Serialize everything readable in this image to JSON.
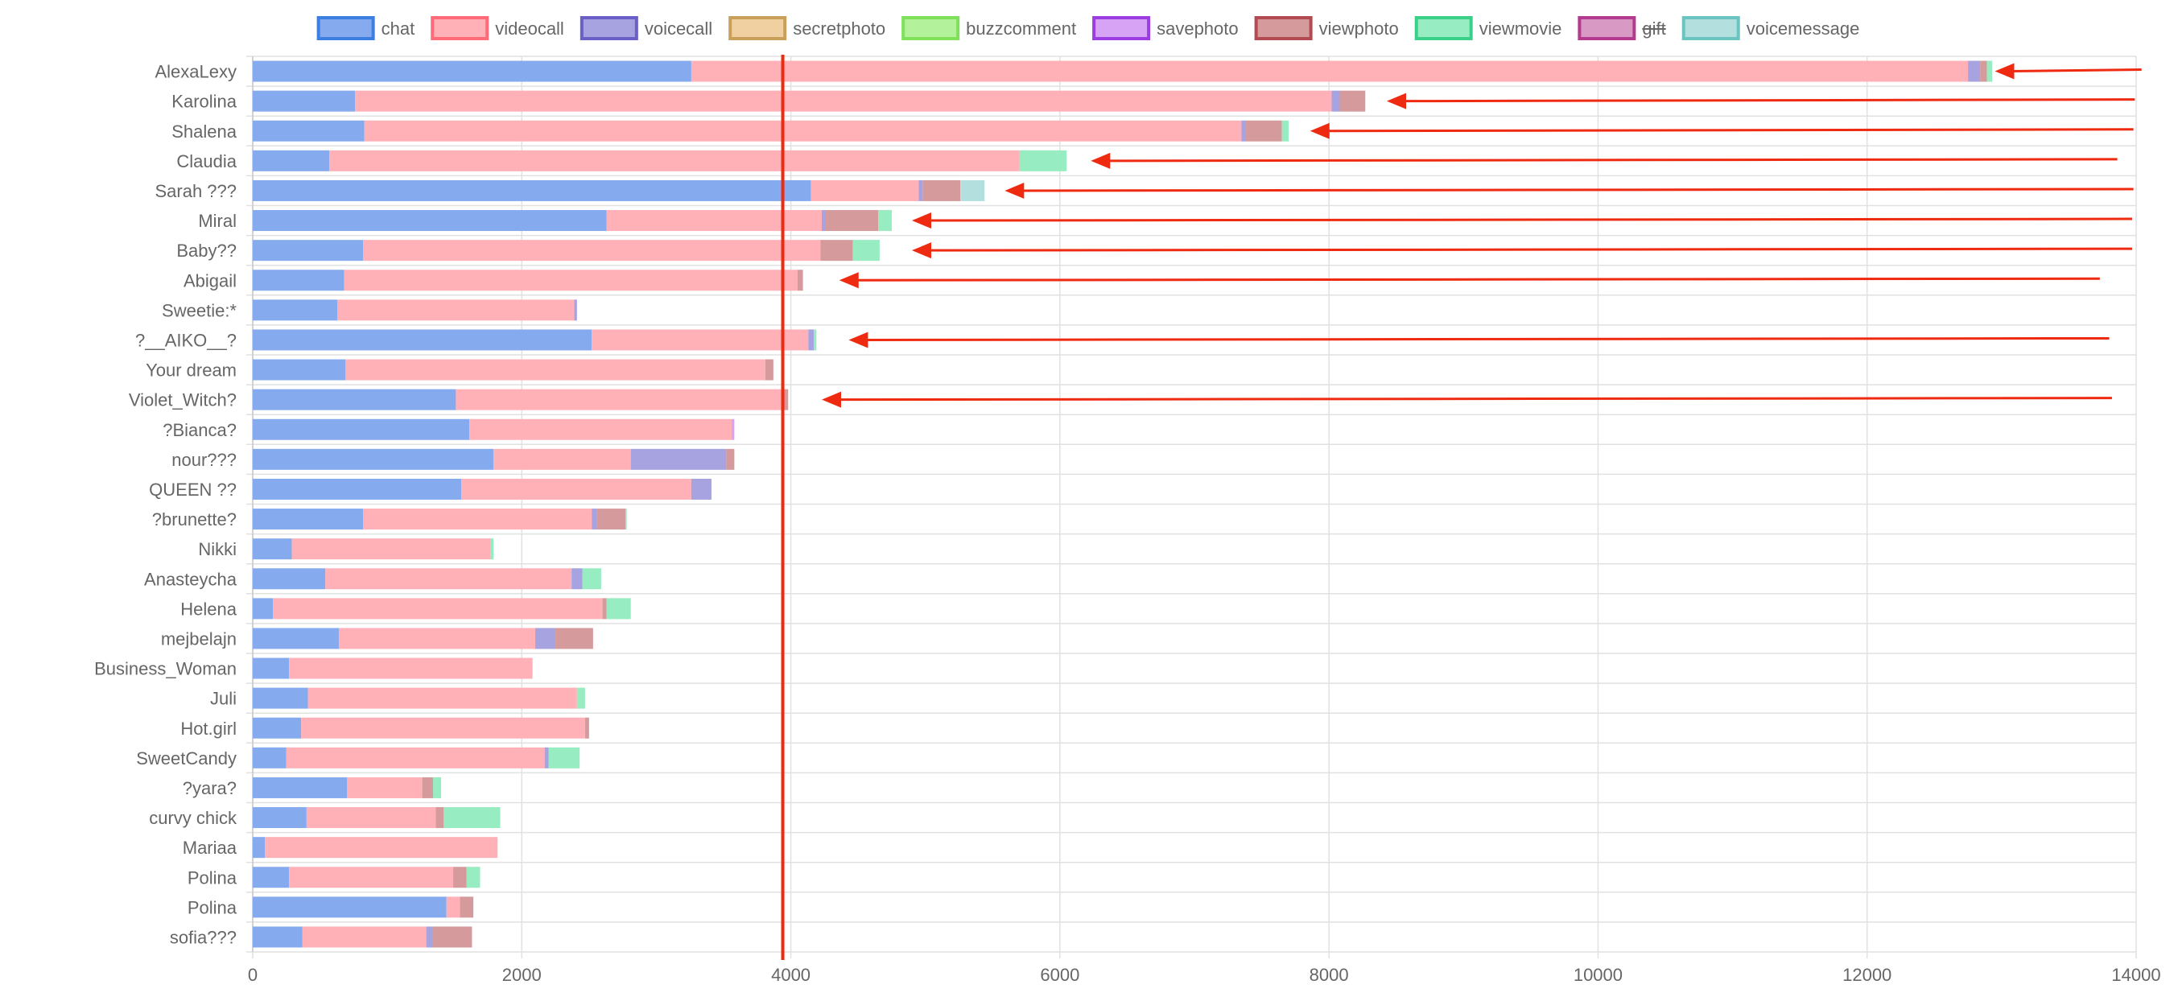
{
  "chart_data": {
    "type": "bar",
    "orientation": "horizontal",
    "stacked": true,
    "legend_position": "top",
    "grid": true,
    "xlim": [
      0,
      14000
    ],
    "x_ticks": [
      "0",
      "2000",
      "4000",
      "6000",
      "8000",
      "10000",
      "12000",
      "14000"
    ],
    "x_tick_values": [
      0,
      2000,
      4000,
      6000,
      8000,
      10000,
      12000,
      14000
    ],
    "categories": [
      "AlexaLexy",
      "Karolina",
      "Shalena",
      "Claudia",
      "Sarah ???",
      "Miral",
      "Baby??",
      "Abigail",
      "Sweetie:*",
      "?__AIKO__?",
      "Your dream",
      "Violet_Witch?",
      "?Bianca?",
      "nour???",
      "QUEEN ??",
      "?brunette?",
      "Nikki",
      "Anasteycha",
      "Helena",
      "mejbelajn",
      "Business_Woman",
      "Juli",
      "Hot.girl",
      "SweetCandy",
      "?yara?",
      "curvy chick",
      "Mariaa",
      "Polina",
      "Polina",
      "sofia???"
    ],
    "series": [
      {
        "name": "chat",
        "color": "#85abee",
        "border": "#3d7fe0",
        "values": [
          3260,
          760,
          830,
          570,
          4150,
          2630,
          820,
          680,
          630,
          2520,
          690,
          1510,
          1610,
          1790,
          1550,
          820,
          290,
          540,
          150,
          640,
          270,
          410,
          360,
          250,
          700,
          400,
          90,
          270,
          1440,
          370
        ]
      },
      {
        "name": "videocall",
        "color": "#ffb1b7",
        "border": "#ff6b78",
        "values": [
          9490,
          7260,
          6520,
          5130,
          800,
          1600,
          3400,
          3370,
          1760,
          1610,
          3120,
          2440,
          1950,
          1020,
          1710,
          1700,
          1480,
          1830,
          2450,
          1460,
          1810,
          2000,
          2110,
          1920,
          560,
          960,
          1730,
          1220,
          100,
          920
        ]
      },
      {
        "name": "voicecall",
        "color": "#a6a3e0",
        "border": "#6a5fc6",
        "values": [
          90,
          60,
          30,
          0,
          30,
          30,
          0,
          0,
          20,
          40,
          0,
          0,
          0,
          710,
          150,
          40,
          0,
          80,
          0,
          150,
          0,
          0,
          0,
          30,
          0,
          0,
          0,
          0,
          0,
          50
        ]
      },
      {
        "name": "secretphoto",
        "color": "#f0d0a0",
        "border": "#c9a05a",
        "values": [
          0,
          0,
          0,
          0,
          0,
          0,
          0,
          0,
          0,
          0,
          0,
          0,
          0,
          0,
          0,
          0,
          0,
          0,
          0,
          0,
          0,
          0,
          0,
          0,
          0,
          0,
          0,
          0,
          0,
          0
        ]
      },
      {
        "name": "buzzcomment",
        "color": "#b3f29a",
        "border": "#7fe05a",
        "values": [
          0,
          0,
          0,
          0,
          0,
          0,
          0,
          0,
          0,
          0,
          0,
          0,
          0,
          0,
          0,
          0,
          0,
          0,
          0,
          0,
          0,
          0,
          0,
          0,
          0,
          0,
          0,
          0,
          0,
          0
        ]
      },
      {
        "name": "savephoto",
        "color": "#d7a3f5",
        "border": "#9b3de0",
        "values": [
          0,
          0,
          0,
          0,
          0,
          0,
          0,
          0,
          0,
          0,
          0,
          0,
          20,
          0,
          0,
          0,
          0,
          0,
          0,
          0,
          0,
          0,
          0,
          0,
          0,
          0,
          0,
          0,
          0,
          0
        ]
      },
      {
        "name": "viewphoto",
        "color": "#d49a9c",
        "border": "#b24a52",
        "values": [
          50,
          190,
          270,
          0,
          280,
          390,
          240,
          40,
          0,
          0,
          60,
          30,
          0,
          60,
          0,
          210,
          0,
          0,
          30,
          280,
          0,
          0,
          30,
          0,
          80,
          60,
          0,
          100,
          100,
          290
        ]
      },
      {
        "name": "viewmovie",
        "color": "#98ecc1",
        "border": "#3ad08a",
        "values": [
          40,
          0,
          50,
          350,
          0,
          100,
          200,
          0,
          0,
          20,
          0,
          0,
          0,
          0,
          0,
          10,
          20,
          140,
          180,
          0,
          0,
          60,
          0,
          230,
          60,
          420,
          0,
          100,
          0,
          0
        ]
      },
      {
        "name": "gift",
        "color": "#d89ac4",
        "border": "#b33a8e",
        "hidden": true,
        "values": [
          0,
          0,
          0,
          0,
          0,
          0,
          0,
          0,
          0,
          0,
          0,
          0,
          0,
          0,
          0,
          0,
          0,
          0,
          0,
          0,
          0,
          0,
          0,
          0,
          0,
          0,
          0,
          0,
          0,
          0
        ]
      },
      {
        "name": "voicemessage",
        "color": "#b3e0de",
        "border": "#6cc4c0",
        "values": [
          0,
          0,
          0,
          0,
          180,
          0,
          0,
          0,
          0,
          0,
          0,
          0,
          0,
          0,
          0,
          0,
          0,
          0,
          0,
          0,
          0,
          0,
          0,
          0,
          0,
          0,
          0,
          0,
          0,
          0
        ]
      }
    ],
    "annotations": {
      "reference_line_value": 3940,
      "reference_line_color": "#ee2a10",
      "arrow_color": "#ee2a10",
      "arrow_targets": [
        {
          "category_index": 0,
          "value": 12950,
          "tail_value": 14040
        },
        {
          "category_index": 1,
          "value": 8430,
          "tail_value": 13990
        },
        {
          "category_index": 2,
          "value": 7860,
          "tail_value": 13980
        },
        {
          "category_index": 3,
          "value": 6230,
          "tail_value": 13860
        },
        {
          "category_index": 4,
          "value": 5590,
          "tail_value": 13980
        },
        {
          "category_index": 5,
          "value": 4900,
          "tail_value": 13970
        },
        {
          "category_index": 6,
          "value": 4900,
          "tail_value": 13970
        },
        {
          "category_index": 7,
          "value": 4360,
          "tail_value": 13730
        },
        {
          "category_index": 9,
          "value": 4430,
          "tail_value": 13800
        },
        {
          "category_index": 11,
          "value": 4230,
          "tail_value": 13820
        }
      ]
    }
  }
}
